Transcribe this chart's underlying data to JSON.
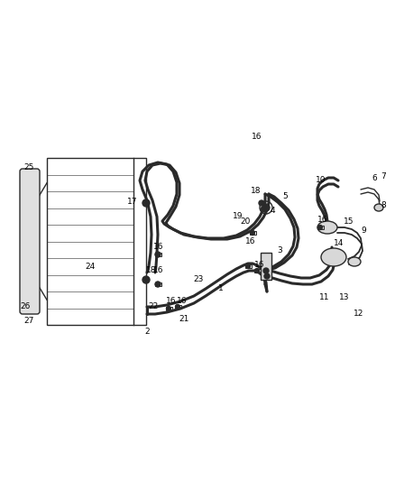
{
  "bg": "#ffffff",
  "lc": "#2a2a2a",
  "lc2": "#444444",
  "fig_w": 4.38,
  "fig_h": 5.33,
  "dpi": 100
}
